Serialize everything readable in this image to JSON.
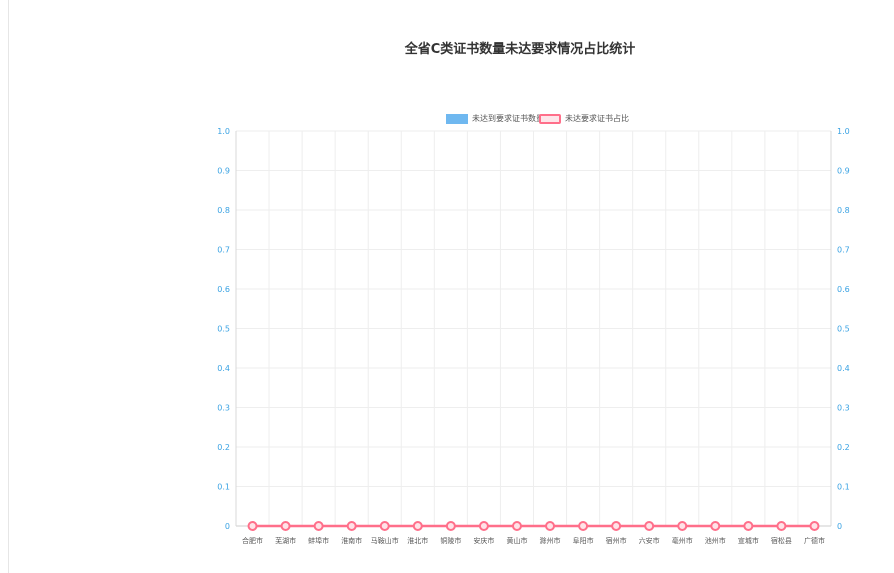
{
  "chart_data": {
    "type": "bar",
    "title": "全省C类证书数量未达要求情况占比统计",
    "categories": [
      "合肥市",
      "芜湖市",
      "蚌埠市",
      "淮南市",
      "马鞍山市",
      "淮北市",
      "铜陵市",
      "安庆市",
      "黄山市",
      "滁州市",
      "阜阳市",
      "宿州市",
      "六安市",
      "亳州市",
      "池州市",
      "宣城市",
      "宿松县",
      "广德市"
    ],
    "series": [
      {
        "name": "未达到要求证书数量",
        "kind": "bar",
        "axis": "left",
        "values": [
          0,
          0,
          0,
          0,
          0,
          0,
          0,
          0,
          0,
          0,
          0,
          0,
          0,
          0,
          0,
          0,
          0,
          0
        ]
      },
      {
        "name": "未达要求证书占比",
        "kind": "line",
        "axis": "right",
        "values": [
          0,
          0,
          0,
          0,
          0,
          0,
          0,
          0,
          0,
          0,
          0,
          0,
          0,
          0,
          0,
          0,
          0,
          0
        ]
      }
    ],
    "y_left": {
      "min": 0,
      "max": 1.0,
      "ticks": [
        "0",
        "0.1",
        "0.2",
        "0.3",
        "0.4",
        "0.5",
        "0.6",
        "0.7",
        "0.8",
        "0.9",
        "1.0"
      ]
    },
    "y_right": {
      "min": 0,
      "max": 1.0,
      "ticks": [
        "0",
        "0.1",
        "0.2",
        "0.3",
        "0.4",
        "0.5",
        "0.6",
        "0.7",
        "0.8",
        "0.9",
        "1.0"
      ]
    },
    "grid": true,
    "legend_position": "top-center",
    "colors": {
      "bar": "#6fb8f0",
      "line": "#ff6f8a",
      "axis_text": "#39a2e3"
    }
  }
}
